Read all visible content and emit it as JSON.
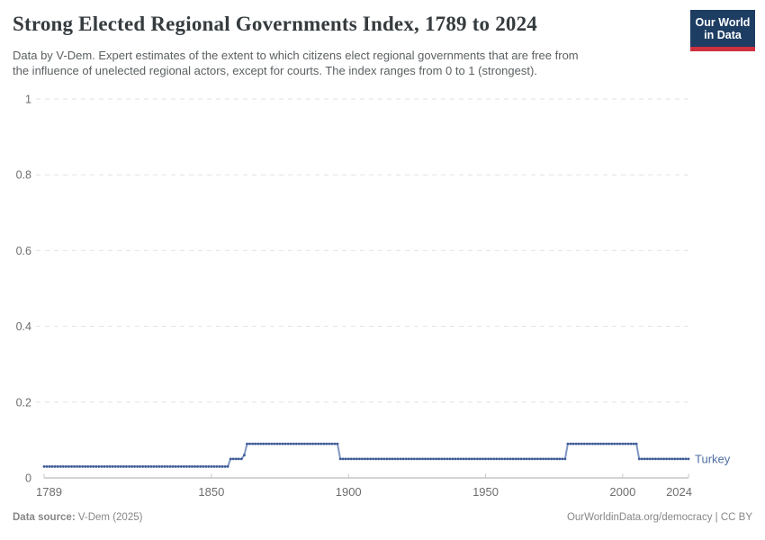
{
  "header": {
    "title": "Strong Elected Regional Governments Index, 1789 to 2024",
    "subtitle_lines": [
      "Data by V-Dem. Expert estimates of the extent to which citizens elect regional governments that are free from",
      "the influence of unelected regional actors, except for courts. The index ranges from 0 to 1 (strongest)."
    ],
    "logo": {
      "line1": "Our World",
      "line2": "in Data",
      "bg_color": "#1d3d63",
      "accent_color": "#cf303e"
    }
  },
  "chart_data": {
    "type": "line",
    "title": "Strong Elected Regional Governments Index, 1789 to 2024",
    "xlabel": "",
    "ylabel": "",
    "x": {
      "min": 1789,
      "max": 2024,
      "ticks": [
        1789,
        1850,
        1900,
        1950,
        2000,
        2024
      ]
    },
    "y": {
      "min": 0,
      "max": 1,
      "ticks": [
        0,
        0.2,
        0.4,
        0.6,
        0.8,
        1
      ]
    },
    "grid": "horizontal-dashed",
    "legend_position": "end-of-line",
    "series": [
      {
        "name": "Turkey",
        "color": "#3d5b96",
        "connector_color": "#8097c2",
        "label_color": "#4e6fa3",
        "marker": "dot-every-year",
        "segments": [
          {
            "from": 1789,
            "to": 1856,
            "value": 0.03
          },
          {
            "from": 1857,
            "to": 1861,
            "value": 0.05
          },
          {
            "from": 1862,
            "to": 1862,
            "value": 0.06
          },
          {
            "from": 1863,
            "to": 1896,
            "value": 0.09
          },
          {
            "from": 1897,
            "to": 1979,
            "value": 0.05
          },
          {
            "from": 1980,
            "to": 2005,
            "value": 0.09
          },
          {
            "from": 2006,
            "to": 2024,
            "value": 0.05
          }
        ]
      }
    ]
  },
  "footer": {
    "source_label": "Data source:",
    "source_value": " V-Dem (2025)",
    "link": "OurWorldinData.org/democracy",
    "license": " | CC BY"
  }
}
